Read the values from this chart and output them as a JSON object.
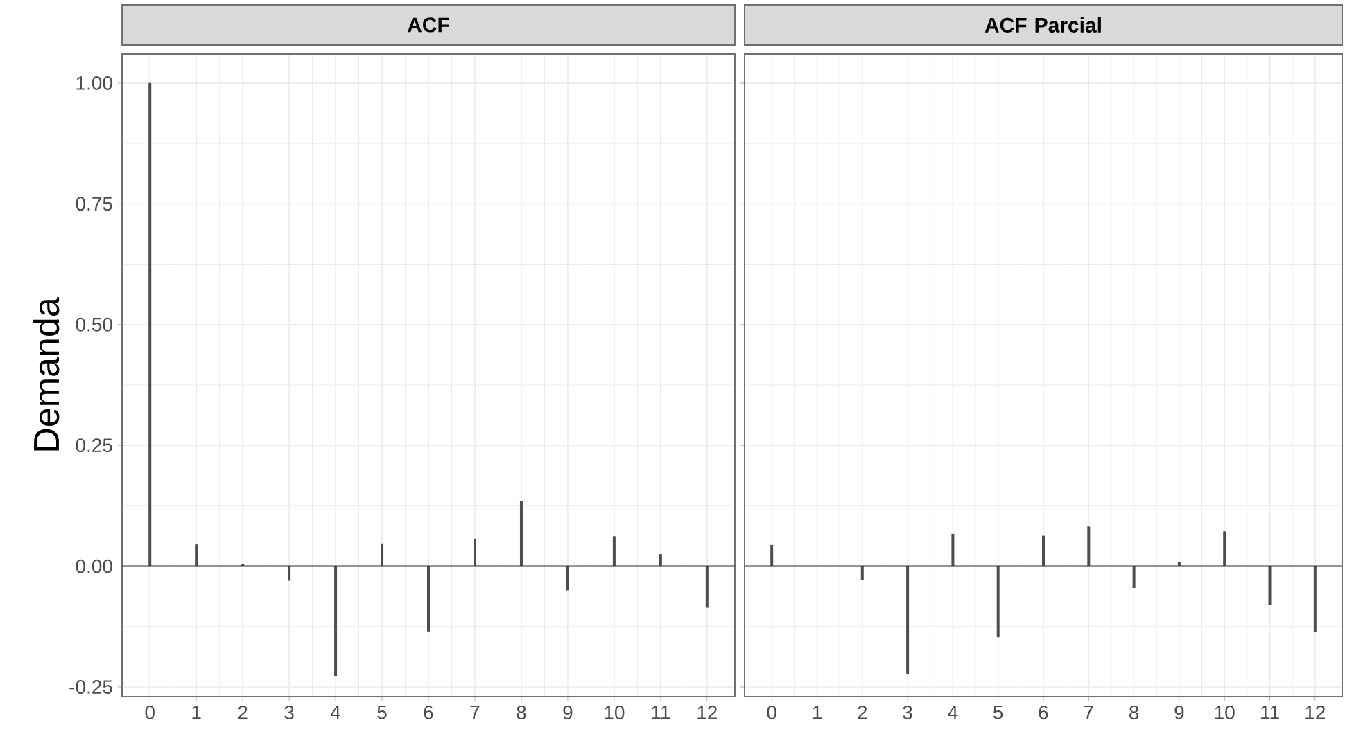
{
  "chart_data": [
    {
      "type": "bar",
      "title": "ACF",
      "ylabel": "Demanda",
      "categories": [
        "0",
        "1",
        "2",
        "3",
        "4",
        "5",
        "6",
        "7",
        "8",
        "9",
        "10",
        "11",
        "12"
      ],
      "values": [
        1.0,
        0.045,
        0.005,
        -0.03,
        -0.227,
        0.047,
        -0.135,
        0.057,
        0.135,
        -0.05,
        0.062,
        0.025,
        -0.086
      ],
      "color": "#4d4d4d",
      "ylim": [
        -0.27,
        1.06
      ],
      "yticks": [
        {
          "value": -0.25,
          "label": "-0.25"
        },
        {
          "value": 0,
          "label": "0.00"
        },
        {
          "value": 0.25,
          "label": "0.25"
        },
        {
          "value": 0.5,
          "label": "0.50"
        },
        {
          "value": 0.75,
          "label": "0.75"
        },
        {
          "value": 1,
          "label": "1.00"
        }
      ],
      "ref_lines": [
        {
          "axis": "y",
          "value": 0,
          "color": "#333333"
        }
      ],
      "grid": true
    },
    {
      "type": "bar",
      "title": "ACF Parcial",
      "categories": [
        "0",
        "1",
        "2",
        "3",
        "4",
        "5",
        "6",
        "7",
        "8",
        "9",
        "10",
        "11",
        "12"
      ],
      "values": [
        0.044,
        0.0,
        -0.029,
        -0.224,
        0.067,
        -0.147,
        0.063,
        0.082,
        -0.045,
        0.008,
        0.072,
        -0.08,
        -0.136
      ],
      "color": "#4d4d4d",
      "ylim": [
        -0.27,
        1.06
      ],
      "yticks": [
        -0.25,
        0,
        0.25,
        0.5,
        0.75,
        1
      ],
      "ref_lines": [
        {
          "axis": "y",
          "value": 0,
          "color": "#333333"
        }
      ],
      "grid": true,
      "tick_labels": "x"
    }
  ]
}
